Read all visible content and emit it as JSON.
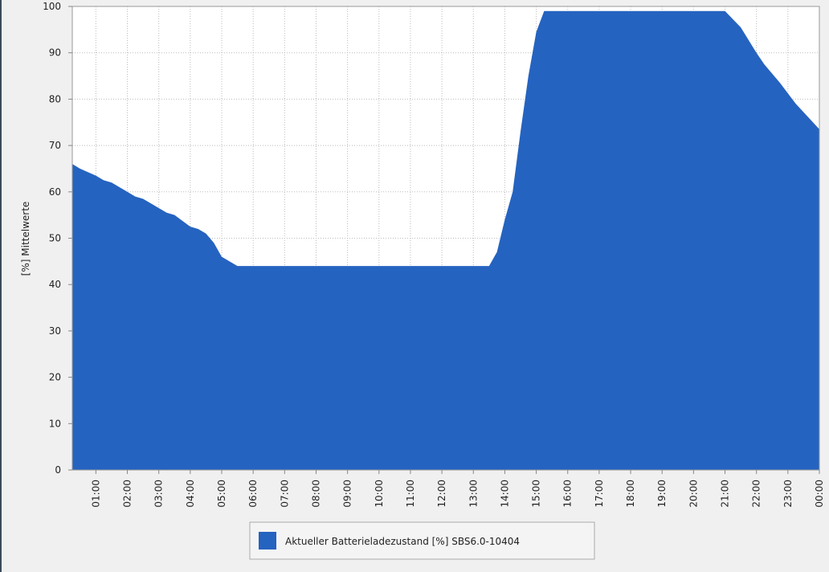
{
  "chart_data": {
    "type": "area",
    "y_label": "[%] Mittelwerte",
    "x": [
      0.25,
      0.5,
      1.0,
      1.25,
      1.5,
      2.0,
      2.25,
      2.5,
      3.0,
      3.25,
      3.5,
      4.0,
      4.25,
      4.5,
      4.75,
      5.0,
      5.5,
      13.5,
      13.75,
      14.0,
      14.25,
      14.5,
      14.75,
      15.0,
      15.25,
      21.0,
      21.5,
      22.0,
      22.25,
      22.75,
      23.25,
      24.0
    ],
    "series": [
      {
        "name": "Aktueller Batterieladezustand [%] SBS6.0-10404",
        "color": "#2563c0",
        "values": [
          66,
          65,
          63.5,
          62.5,
          62,
          60,
          59,
          58.5,
          56.5,
          55.5,
          55,
          52.5,
          52,
          51,
          49,
          46,
          44,
          44,
          47,
          54,
          60,
          73,
          85,
          94.5,
          99,
          99,
          95.5,
          90,
          87.5,
          83.5,
          79,
          73.5
        ]
      }
    ],
    "xlim": [
      0.25,
      24
    ],
    "xticks": [
      {
        "value": 1,
        "label": "01:00"
      },
      {
        "value": 2,
        "label": "02:00"
      },
      {
        "value": 3,
        "label": "03:00"
      },
      {
        "value": 4,
        "label": "04:00"
      },
      {
        "value": 5,
        "label": "05:00"
      },
      {
        "value": 6,
        "label": "06:00"
      },
      {
        "value": 7,
        "label": "07:00"
      },
      {
        "value": 8,
        "label": "08:00"
      },
      {
        "value": 9,
        "label": "09:00"
      },
      {
        "value": 10,
        "label": "10:00"
      },
      {
        "value": 11,
        "label": "11:00"
      },
      {
        "value": 12,
        "label": "12:00"
      },
      {
        "value": 13,
        "label": "13:00"
      },
      {
        "value": 14,
        "label": "14:00"
      },
      {
        "value": 15,
        "label": "15:00"
      },
      {
        "value": 16,
        "label": "16:00"
      },
      {
        "value": 17,
        "label": "17:00"
      },
      {
        "value": 18,
        "label": "18:00"
      },
      {
        "value": 19,
        "label": "19:00"
      },
      {
        "value": 20,
        "label": "20:00"
      },
      {
        "value": 21,
        "label": "21:00"
      },
      {
        "value": 22,
        "label": "22:00"
      },
      {
        "value": 23,
        "label": "23:00"
      },
      {
        "value": 24,
        "label": "00:00"
      }
    ],
    "ylim": [
      0,
      100
    ],
    "yticks": [
      0,
      10,
      20,
      30,
      40,
      50,
      60,
      70,
      80,
      90,
      100
    ],
    "grid": true
  }
}
